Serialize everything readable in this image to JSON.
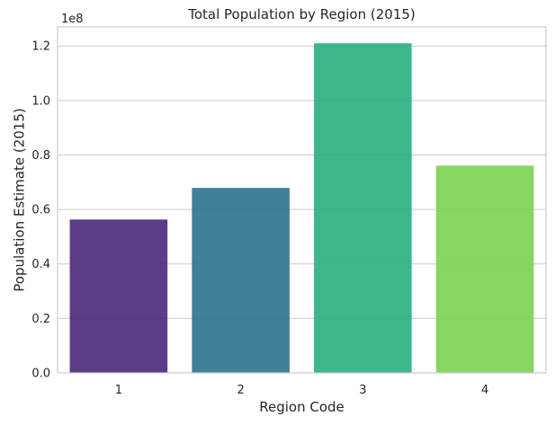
{
  "chart_data": {
    "type": "bar",
    "title": "Total Population by Region (2015)",
    "xlabel": "Region Code",
    "ylabel": "Population Estimate (2015)",
    "y_offset_label": "1e8",
    "categories": [
      "1",
      "2",
      "3",
      "4"
    ],
    "values": [
      56300000,
      67900000,
      121000000,
      76100000
    ],
    "colors": [
      "#482878",
      "#2c728e",
      "#28ae80",
      "#7ad151"
    ],
    "bar_opacity": 0.9,
    "ylim": [
      0,
      127000000
    ],
    "yticks": [
      0,
      20000000,
      40000000,
      60000000,
      80000000,
      100000000,
      120000000
    ],
    "ytick_labels": [
      "0.0",
      "0.2",
      "0.4",
      "0.6",
      "0.8",
      "1.0",
      "1.2"
    ],
    "grid": "horizontal",
    "legend": "none"
  }
}
